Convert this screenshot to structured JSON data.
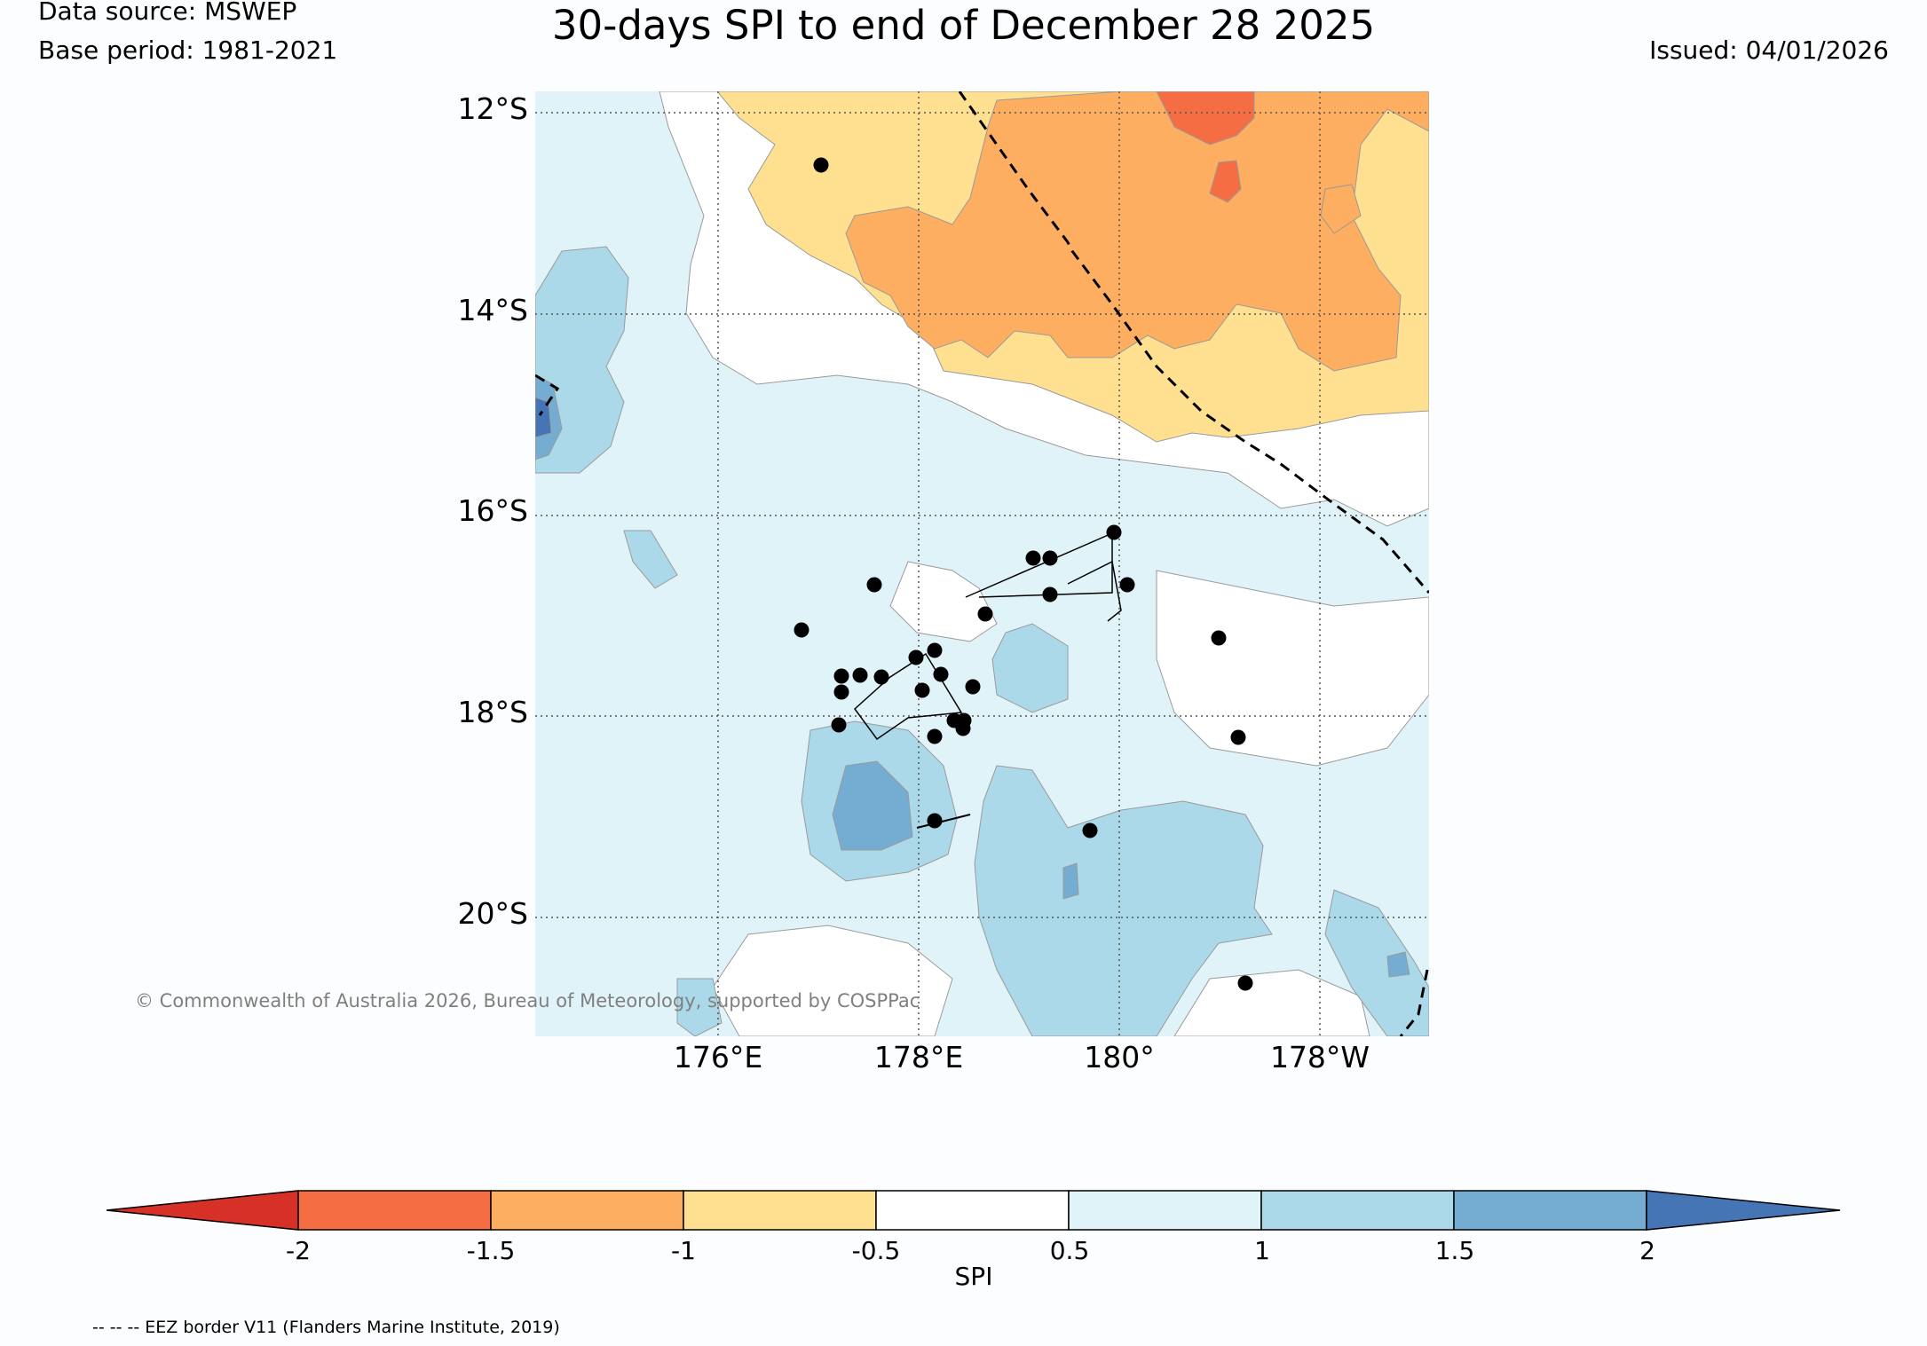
{
  "header": {
    "data_source": "Data source: MSWEP",
    "base_period": "Base period: 1981-2021",
    "title": "30-days SPI to end of December 28 2025",
    "issued": "Issued: 04/01/2026"
  },
  "map": {
    "lat_labels": [
      "12°S",
      "14°S",
      "16°S",
      "18°S",
      "20°S"
    ],
    "lon_labels": [
      "176°E",
      "178°E",
      "180°",
      "178°W"
    ],
    "copyright": "© Commonwealth of Australia 2026, Bureau of Meteorology, supported by COSPPac"
  },
  "legend": {
    "title": "SPI",
    "tick_labels": [
      "-2",
      "-1.5",
      "-1",
      "-0.5",
      "0.5",
      "1",
      "1.5",
      "2"
    ],
    "colors": [
      "#d73027",
      "#f46d43",
      "#fdae61",
      "#fee090",
      "#ffffff",
      "#e0f3f8",
      "#abd9e9",
      "#74add1",
      "#4575b4"
    ]
  },
  "footnote": "-- -- -- EEZ border V11 (Flanders Marine Institute, 2019)"
}
